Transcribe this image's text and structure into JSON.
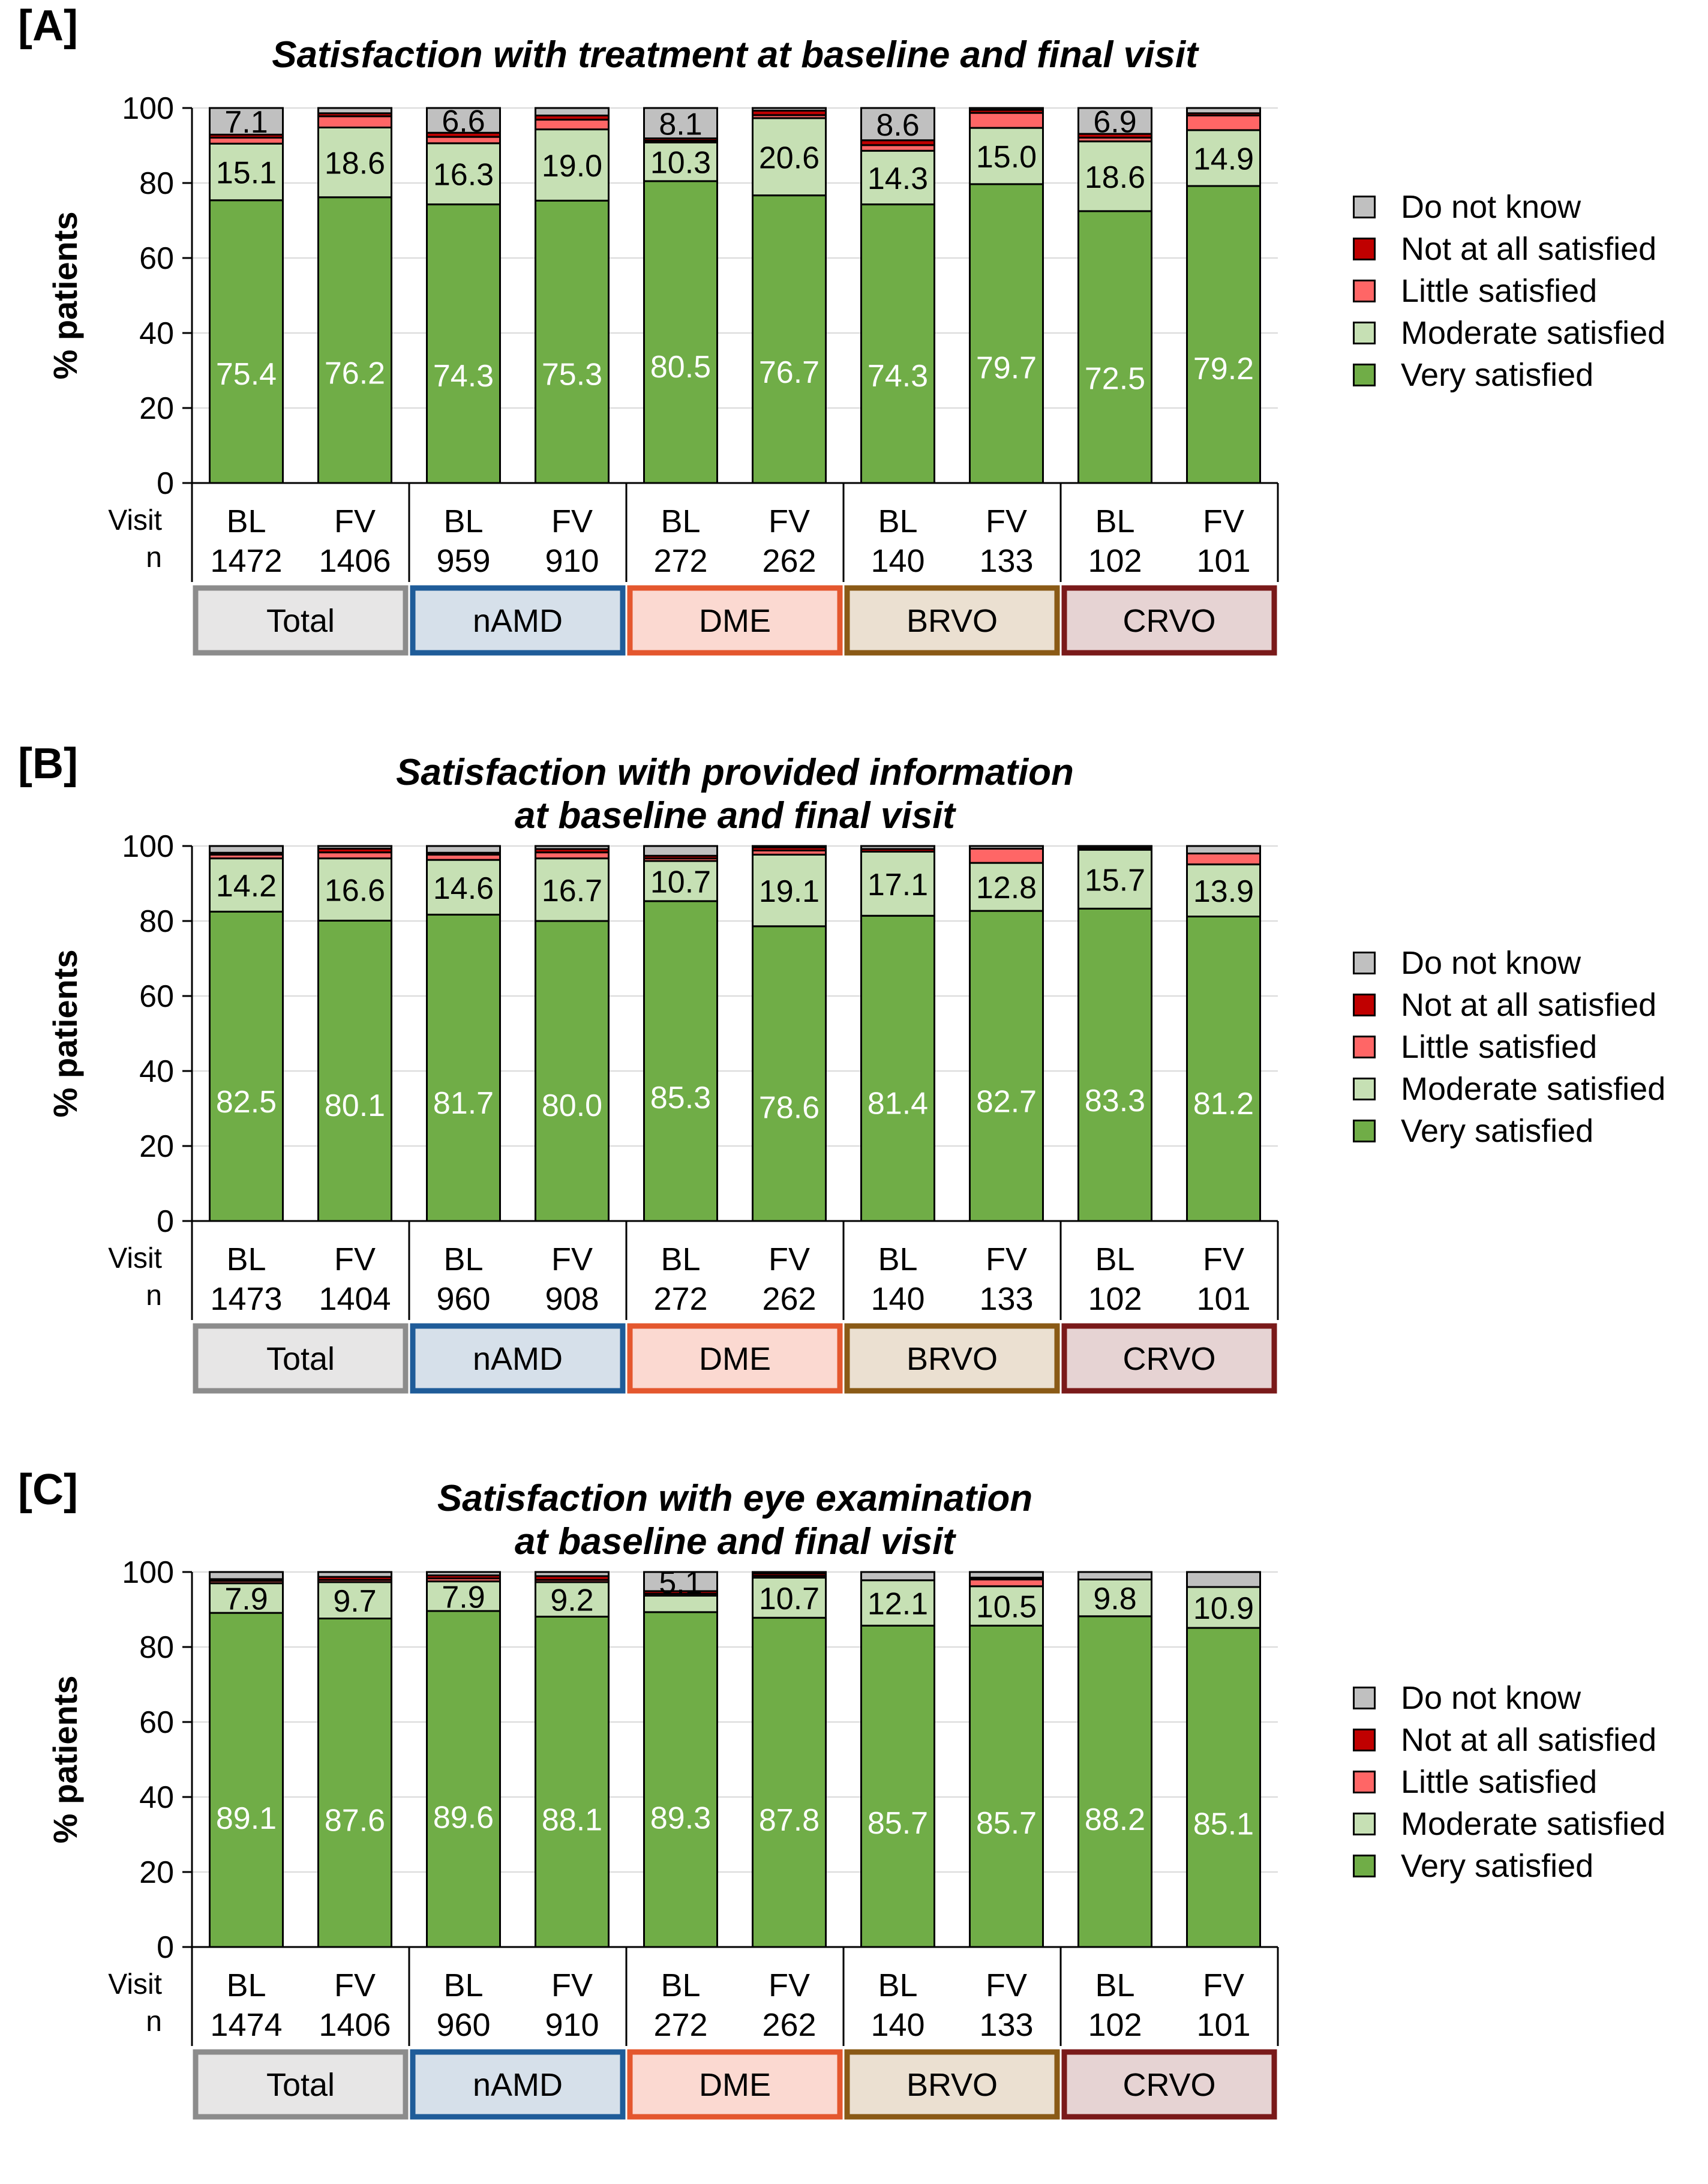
{
  "categories_order": [
    "Very satisfied",
    "Moderate satisfied",
    "Little satisfied",
    "Not at all satisfied",
    "Do not know"
  ],
  "legend": [
    {
      "label": "Do not know",
      "color": "#c0c0c0"
    },
    {
      "label": "Not at all satisfied",
      "color": "#c00000"
    },
    {
      "label": "Little satisfied",
      "color": "#ff6666"
    },
    {
      "label": "Moderate satisfied",
      "color": "#c6e0b4"
    },
    {
      "label": "Very satisfied",
      "color": "#70ad47"
    }
  ],
  "row_labels": {
    "visit": "Visit",
    "n": "n"
  },
  "groups": [
    {
      "label": "Total",
      "fill": "#e7e6e6",
      "border": "#8c8c8c"
    },
    {
      "label": "nAMD",
      "fill": "#d6e0ea",
      "border": "#1f5c99"
    },
    {
      "label": "DME",
      "fill": "#fbd9d1",
      "border": "#e4572e"
    },
    {
      "label": "BRVO",
      "fill": "#ebe0d1",
      "border": "#8a5a16"
    },
    {
      "label": "CRVO",
      "fill": "#e6d3d3",
      "border": "#7a1a1a"
    }
  ],
  "chart_data": [
    {
      "panel": "[A]",
      "type": "bar",
      "stacked": true,
      "title": "Satisfaction with treatment at baseline and final visit",
      "ylabel": "% patients",
      "ylim": [
        0,
        100
      ],
      "yticks": [
        0,
        20,
        40,
        60,
        80,
        100
      ],
      "categories": [
        "BL",
        "FV",
        "BL",
        "FV",
        "BL",
        "FV",
        "BL",
        "FV",
        "BL",
        "FV"
      ],
      "n": [
        "1472",
        "1406",
        "959",
        "910",
        "272",
        "262",
        "140",
        "133",
        "102",
        "101"
      ],
      "series": [
        {
          "name": "Very satisfied",
          "values": [
            75.4,
            76.2,
            74.3,
            75.3,
            80.5,
            76.7,
            74.3,
            79.7,
            72.5,
            79.2
          ]
        },
        {
          "name": "Moderate satisfied",
          "values": [
            15.1,
            18.6,
            16.3,
            19.0,
            10.3,
            20.6,
            14.3,
            15.0,
            18.6,
            14.9
          ]
        },
        {
          "name": "Little satisfied",
          "values": [
            1.6,
            3.0,
            1.7,
            2.6,
            0.5,
            0.8,
            1.5,
            4.0,
            1.0,
            3.9
          ]
        },
        {
          "name": "Not at all satisfied",
          "values": [
            0.8,
            0.8,
            1.1,
            1.1,
            0.6,
            1.2,
            1.3,
            0.8,
            1.0,
            0.6
          ]
        },
        {
          "name": "Do not know",
          "values": [
            7.1,
            1.4,
            6.6,
            2.0,
            8.1,
            0.7,
            8.6,
            0.5,
            6.9,
            1.4
          ]
        }
      ],
      "labels": [
        [
          "75.4",
          "76.2",
          "74.3",
          "75.3",
          "80.5",
          "76.7",
          "74.3",
          "79.7",
          "72.5",
          "79.2"
        ],
        [
          "15.1",
          "18.6",
          "16.3",
          "19.0",
          "10.3",
          "20.6",
          "14.3",
          "15.0",
          "18.6",
          "14.9"
        ],
        [
          "",
          "",
          "",
          "",
          "",
          "",
          "",
          "",
          "",
          ""
        ],
        [
          "",
          "",
          "",
          "",
          "",
          "",
          "",
          "",
          "",
          ""
        ],
        [
          "7.1",
          "",
          "6.6",
          "",
          "8.1",
          "",
          "8.6",
          "",
          "6.9",
          ""
        ]
      ]
    },
    {
      "panel": "[B]",
      "type": "bar",
      "stacked": true,
      "title": "Satisfaction with provided information",
      "subtitle": "at baseline and final visit",
      "ylabel": "% patients",
      "ylim": [
        0,
        100
      ],
      "yticks": [
        0,
        20,
        40,
        60,
        80,
        100
      ],
      "categories": [
        "BL",
        "FV",
        "BL",
        "FV",
        "BL",
        "FV",
        "BL",
        "FV",
        "BL",
        "FV"
      ],
      "n": [
        "1473",
        "1404",
        "960",
        "908",
        "272",
        "262",
        "140",
        "133",
        "102",
        "101"
      ],
      "series": [
        {
          "name": "Very satisfied",
          "values": [
            82.5,
            80.1,
            81.7,
            80.0,
            85.3,
            78.6,
            81.4,
            82.7,
            83.3,
            81.2
          ]
        },
        {
          "name": "Moderate satisfied",
          "values": [
            14.2,
            16.6,
            14.6,
            16.7,
            10.7,
            19.1,
            17.1,
            12.8,
            15.7,
            13.9
          ]
        },
        {
          "name": "Little satisfied",
          "values": [
            1.0,
            1.6,
            1.4,
            1.6,
            0.7,
            1.1,
            0.0,
            3.8,
            0.0,
            2.9
          ]
        },
        {
          "name": "Not at all satisfied",
          "values": [
            0.5,
            1.0,
            0.5,
            0.9,
            0.7,
            0.8,
            0.7,
            0.0,
            0.5,
            0.0
          ]
        },
        {
          "name": "Do not know",
          "values": [
            1.8,
            0.7,
            1.8,
            0.8,
            2.6,
            0.4,
            0.8,
            0.7,
            0.5,
            2.0
          ]
        }
      ],
      "labels": [
        [
          "82.5",
          "80.1",
          "81.7",
          "80.0",
          "85.3",
          "78.6",
          "81.4",
          "82.7",
          "83.3",
          "81.2"
        ],
        [
          "14.2",
          "16.6",
          "14.6",
          "16.7",
          "10.7",
          "19.1",
          "17.1",
          "12.8",
          "15.7",
          "13.9"
        ],
        [
          "",
          "",
          "",
          "",
          "",
          "",
          "",
          "",
          "",
          ""
        ],
        [
          "",
          "",
          "",
          "",
          "",
          "",
          "",
          "",
          "",
          ""
        ],
        [
          "",
          "",
          "",
          "",
          "",
          "",
          "",
          "",
          "",
          ""
        ]
      ]
    },
    {
      "panel": "[C]",
      "type": "bar",
      "stacked": true,
      "title": "Satisfaction with eye examination",
      "subtitle": "at baseline and final visit",
      "ylabel": "% patients",
      "ylim": [
        0,
        100
      ],
      "yticks": [
        0,
        20,
        40,
        60,
        80,
        100
      ],
      "categories": [
        "BL",
        "FV",
        "BL",
        "FV",
        "BL",
        "FV",
        "BL",
        "FV",
        "BL",
        "FV"
      ],
      "n": [
        "1474",
        "1406",
        "960",
        "910",
        "272",
        "262",
        "140",
        "133",
        "102",
        "101"
      ],
      "series": [
        {
          "name": "Very satisfied",
          "values": [
            89.1,
            87.6,
            89.6,
            88.1,
            89.3,
            87.8,
            85.7,
            85.7,
            88.2,
            85.1
          ]
        },
        {
          "name": "Moderate satisfied",
          "values": [
            7.9,
            9.7,
            7.9,
            9.2,
            4.4,
            10.7,
            12.1,
            10.5,
            9.8,
            10.9
          ]
        },
        {
          "name": "Little satisfied",
          "values": [
            0.6,
            0.6,
            0.8,
            0.6,
            0.5,
            0.5,
            0.0,
            1.8,
            0.0,
            0.0
          ]
        },
        {
          "name": "Not at all satisfied",
          "values": [
            0.5,
            0.8,
            0.8,
            1.0,
            0.7,
            0.6,
            0.0,
            0.5,
            0.0,
            0.0
          ]
        },
        {
          "name": "Do not know",
          "values": [
            1.9,
            1.3,
            0.9,
            1.1,
            5.1,
            0.4,
            2.2,
            1.5,
            2.0,
            4.0
          ]
        }
      ],
      "labels": [
        [
          "89.1",
          "87.6",
          "89.6",
          "88.1",
          "89.3",
          "87.8",
          "85.7",
          "85.7",
          "88.2",
          "85.1"
        ],
        [
          "7.9",
          "9.7",
          "7.9",
          "9.2",
          "",
          "10.7",
          "12.1",
          "10.5",
          "9.8",
          "10.9"
        ],
        [
          "",
          "",
          "",
          "",
          "",
          "",
          "",
          "",
          "",
          ""
        ],
        [
          "",
          "",
          "",
          "",
          "",
          "",
          "",
          "",
          "",
          ""
        ],
        [
          "",
          "",
          "",
          "",
          "5.1",
          "",
          "",
          "",
          "",
          ""
        ]
      ]
    }
  ]
}
